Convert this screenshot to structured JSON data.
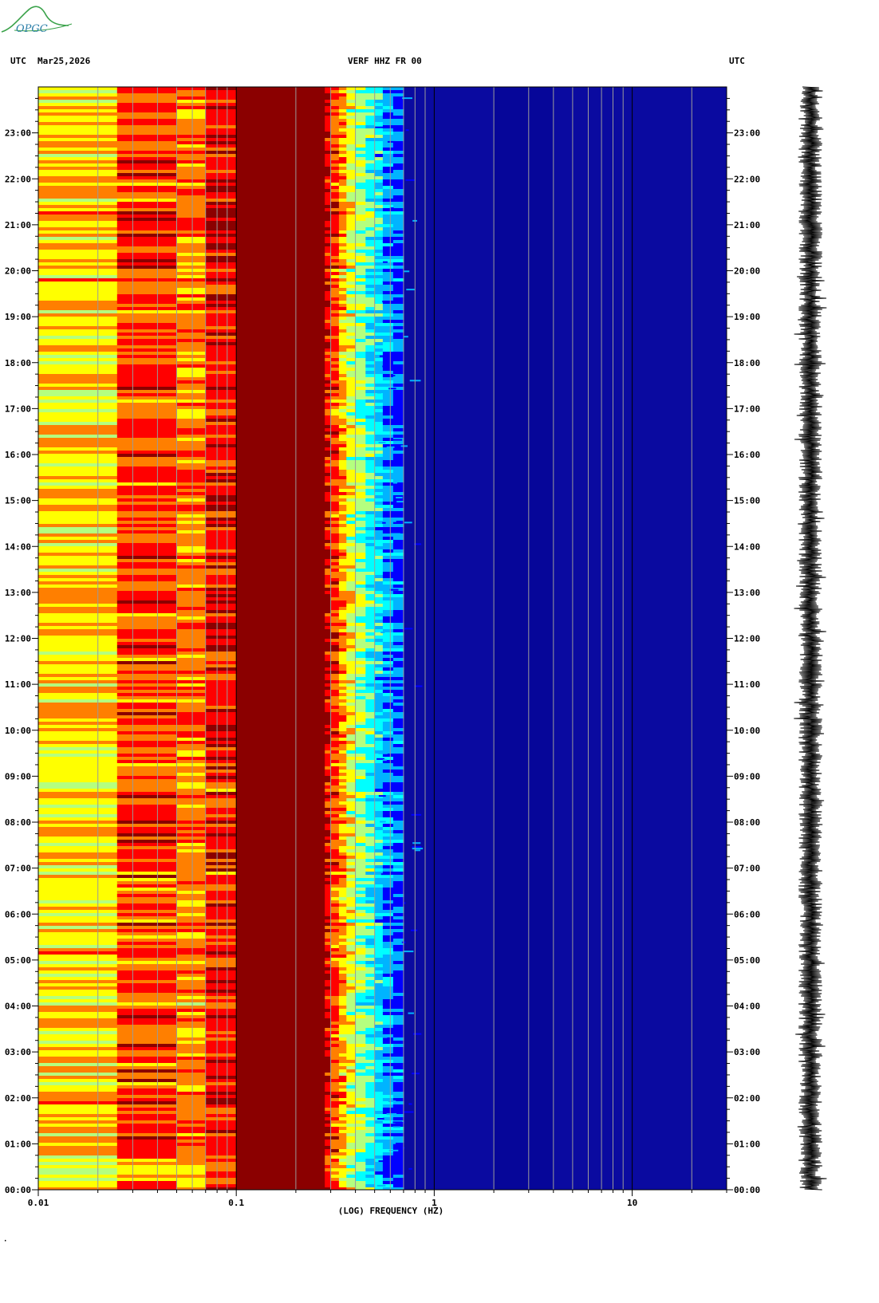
{
  "header": {
    "left_tz": "UTC",
    "date": "Mar25,2026",
    "station": "VERF HHZ FR 00",
    "right_tz": "UTC"
  },
  "logo": {
    "text": "OPGC"
  },
  "footer_mark": "·",
  "chart_data": {
    "type": "heatmap",
    "title": "VERF HHZ FR 00",
    "xlabel": "(LOG) FREQUENCY (HZ)",
    "x_scale": "log",
    "xlim": [
      0.01,
      30
    ],
    "x_ticks": [
      {
        "value": 0.01,
        "label": "0.01"
      },
      {
        "value": 0.1,
        "label": "0.1"
      },
      {
        "value": 1,
        "label": "1"
      },
      {
        "value": 10,
        "label": "10"
      }
    ],
    "ylabel": "UTC",
    "ylim_hours": [
      0,
      24
    ],
    "y_ticks": [
      "00:00",
      "01:00",
      "02:00",
      "03:00",
      "04:00",
      "05:00",
      "06:00",
      "07:00",
      "08:00",
      "09:00",
      "10:00",
      "11:00",
      "12:00",
      "13:00",
      "14:00",
      "15:00",
      "16:00",
      "17:00",
      "18:00",
      "19:00",
      "20:00",
      "21:00",
      "22:00",
      "23:00"
    ],
    "colormap": [
      "#00008b",
      "#0000ff",
      "#00b4ff",
      "#00ffff",
      "#b4ff7f",
      "#ffff00",
      "#ff7f00",
      "#ff0000",
      "#8b0000"
    ],
    "background_color": "#0a0aa0",
    "spectral_bands": [
      {
        "f_min": 0.01,
        "f_max": 0.025,
        "level": "yellow-orange, cyan patches"
      },
      {
        "f_min": 0.025,
        "f_max": 0.1,
        "level": "red-orange-yellow"
      },
      {
        "f_min": 0.1,
        "f_max": 0.28,
        "level": "dark red (max)"
      },
      {
        "f_min": 0.28,
        "f_max": 0.6,
        "level": "red to cyan transition"
      },
      {
        "f_min": 0.6,
        "f_max": 30,
        "level": "blue (low)"
      }
    ],
    "seismogram": {
      "present": true,
      "side": "right"
    }
  }
}
